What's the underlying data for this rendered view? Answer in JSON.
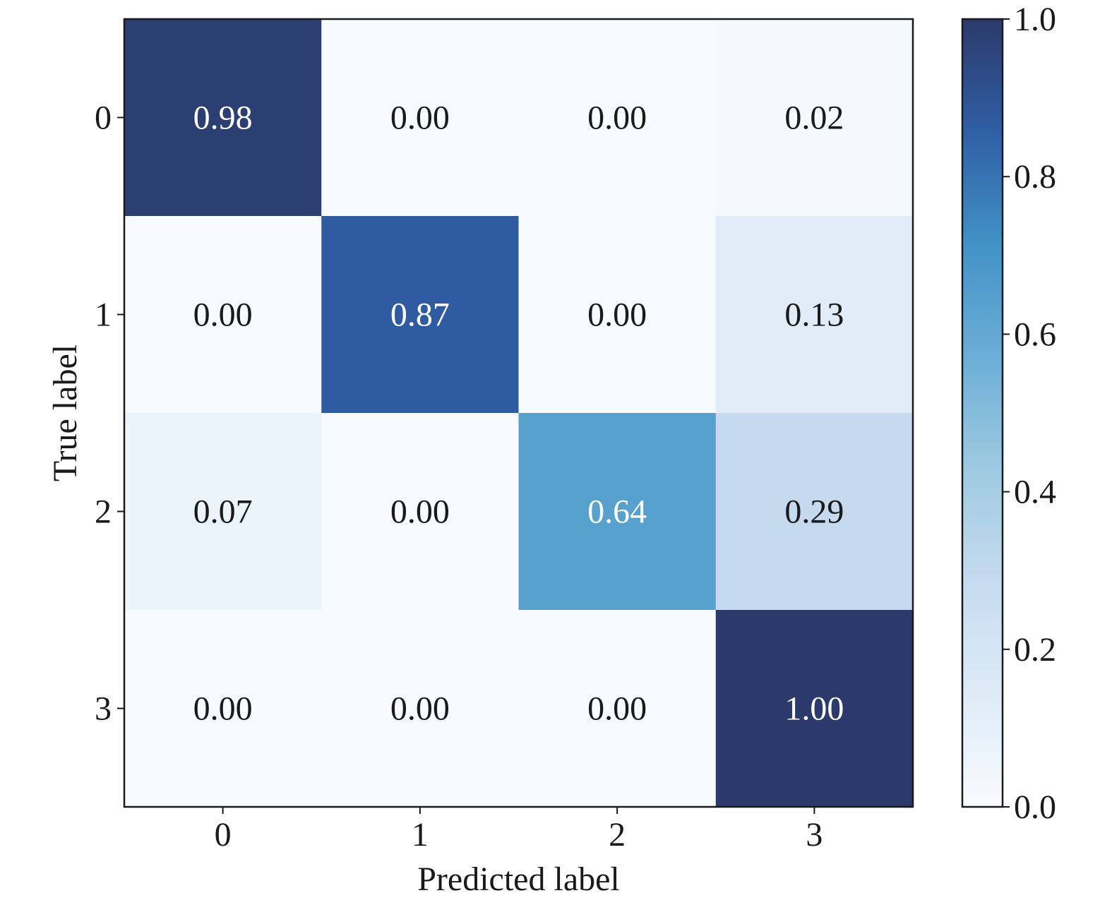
{
  "chart_data": {
    "type": "heatmap",
    "title": "",
    "xlabel": "Predicted label",
    "ylabel": "True label",
    "x_categories": [
      "0",
      "1",
      "2",
      "3"
    ],
    "y_categories": [
      "0",
      "1",
      "2",
      "3"
    ],
    "values": [
      [
        0.98,
        0.0,
        0.0,
        0.02
      ],
      [
        0.0,
        0.87,
        0.0,
        0.13
      ],
      [
        0.07,
        0.0,
        0.64,
        0.29
      ],
      [
        0.0,
        0.0,
        0.0,
        1.0
      ]
    ],
    "value_labels": [
      [
        "0.98",
        "0.00",
        "0.00",
        "0.02"
      ],
      [
        "0.00",
        "0.87",
        "0.00",
        "0.13"
      ],
      [
        "0.07",
        "0.00",
        "0.64",
        "0.29"
      ],
      [
        "0.00",
        "0.00",
        "0.00",
        "1.00"
      ]
    ],
    "colorbar": {
      "range": [
        0.0,
        1.0
      ],
      "ticks": [
        0.0,
        0.2,
        0.4,
        0.6,
        0.8,
        1.0
      ],
      "tick_labels": [
        "0.0",
        "0.2",
        "0.4",
        "0.6",
        "0.8",
        "1.0"
      ]
    },
    "colormap": [
      "#f7fbff",
      "#deebf7",
      "#c6dbef",
      "#9ecae1",
      "#6baed6",
      "#4292c6",
      "#2f5fa5",
      "#2c3a6b"
    ],
    "label_color_dark": "#1a1a1a",
    "label_color_light": "#ffffff"
  }
}
